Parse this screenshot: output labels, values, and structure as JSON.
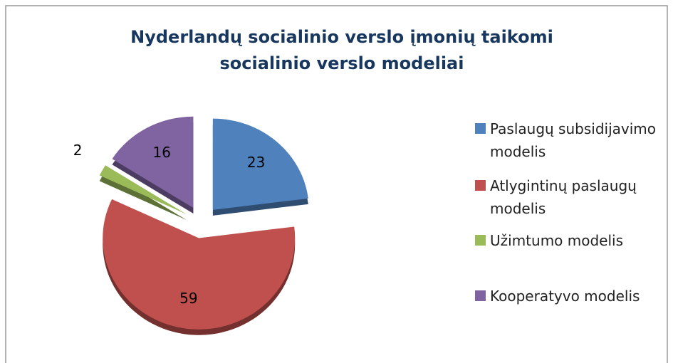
{
  "chart_data": {
    "type": "pie",
    "title": "Nyderlandų socialinio verslo įmonių taikomi socialinio verslo modeliai",
    "categories": [
      "Paslaugų subsidijavimo modelis",
      "Atlygintinų paslaugų modelis",
      "Užimtumo modelis",
      "Kooperatyvo modelis"
    ],
    "values": [
      23,
      59,
      2,
      16
    ],
    "colors": [
      "#4f81bd",
      "#c0504d",
      "#9bbb59",
      "#8064a2"
    ],
    "legend": "right"
  }
}
